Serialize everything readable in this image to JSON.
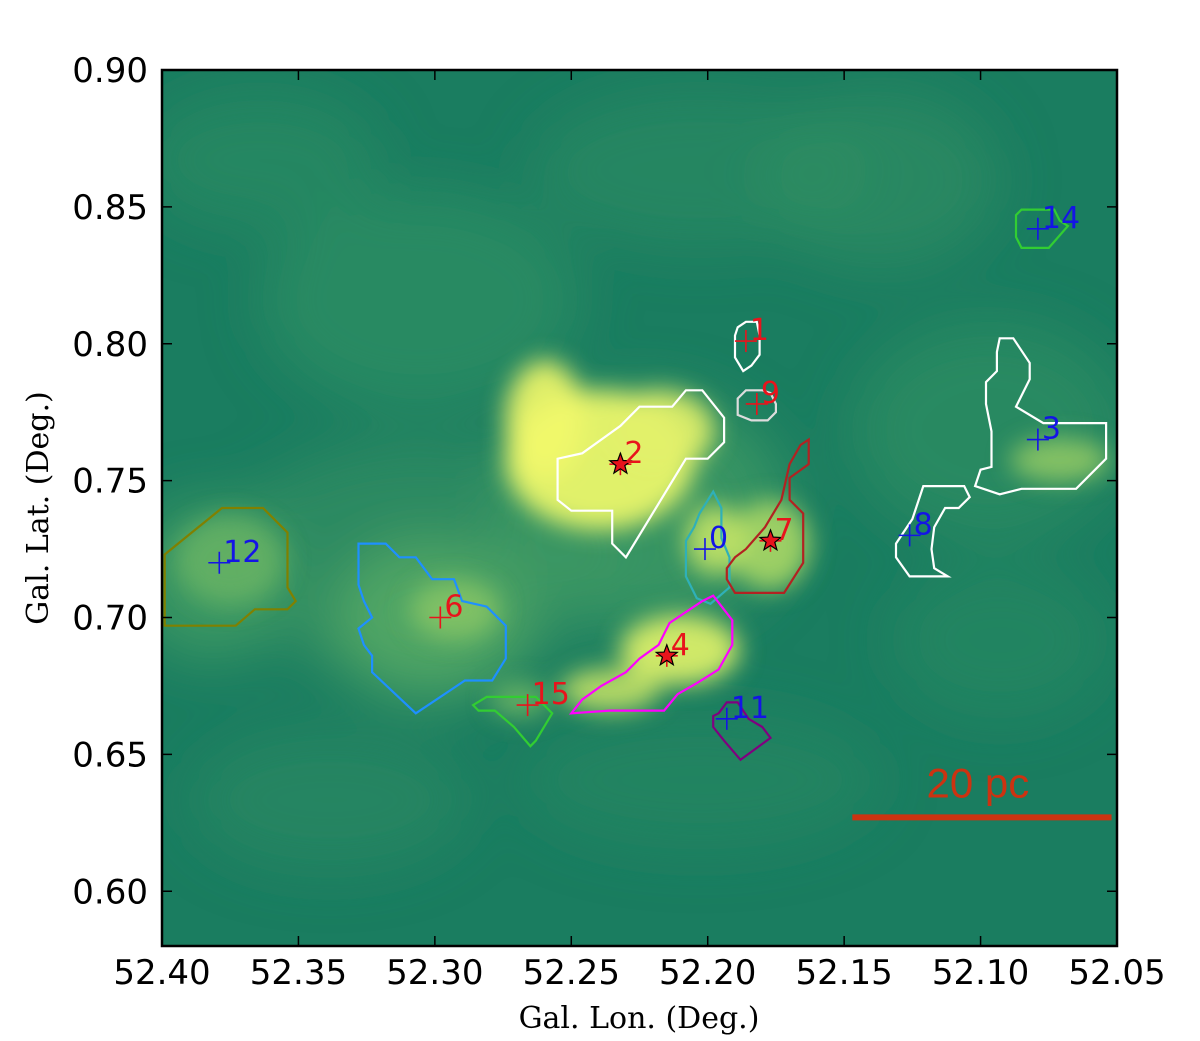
{
  "chart_data": {
    "type": "scatter",
    "subtype": "sky map with clump contours over a colour-scale intensity image",
    "title": "",
    "xlabel": "Gal. Lon. (Deg.)",
    "ylabel": "Gal. Lat. (Deg.)",
    "xlim": [
      52.4,
      52.05
    ],
    "ylim": [
      0.58,
      0.9
    ],
    "x_reversed": true,
    "xticks": [
      "52.40",
      "52.35",
      "52.30",
      "52.25",
      "52.20",
      "52.15",
      "52.10",
      "52.05"
    ],
    "yticks": [
      "0.60",
      "0.65",
      "0.70",
      "0.75",
      "0.80",
      "0.85",
      "0.90"
    ],
    "grid": false,
    "colormap": "summer",
    "colors": {
      "map_low": "#006a5a",
      "map_mid": "#3c9a63",
      "map_high": "#ffff66",
      "label_red": "#e8141c",
      "label_blue": "#1414e6",
      "star": "#e8141c",
      "scalebar": "#cc3311"
    },
    "clumps": [
      {
        "id": "0",
        "lon": 52.201,
        "lat": 0.725,
        "label_color": "blue",
        "contour_color": "#2fb0b8",
        "star": false,
        "contour": [
          [
            52.203,
            0.738
          ],
          [
            52.198,
            0.746
          ],
          [
            52.195,
            0.74
          ],
          [
            52.195,
            0.729
          ],
          [
            52.192,
            0.722
          ],
          [
            52.192,
            0.711
          ],
          [
            52.199,
            0.705
          ],
          [
            52.204,
            0.707
          ],
          [
            52.208,
            0.715
          ],
          [
            52.208,
            0.728
          ],
          [
            52.205,
            0.733
          ]
        ]
      },
      {
        "id": "1",
        "lon": 52.186,
        "lat": 0.801,
        "label_color": "red",
        "contour_color": "#ffffff",
        "star": false,
        "contour": [
          [
            52.189,
            0.806
          ],
          [
            52.186,
            0.808
          ],
          [
            52.182,
            0.808
          ],
          [
            52.181,
            0.803
          ],
          [
            52.181,
            0.796
          ],
          [
            52.184,
            0.792
          ],
          [
            52.187,
            0.79
          ],
          [
            52.19,
            0.795
          ],
          [
            52.19,
            0.803
          ]
        ]
      },
      {
        "id": "2",
        "lon": 52.232,
        "lat": 0.756,
        "label_color": "red",
        "contour_color": "#ffffff",
        "star": true,
        "contour": [
          [
            52.246,
            0.76
          ],
          [
            52.232,
            0.77
          ],
          [
            52.225,
            0.777
          ],
          [
            52.213,
            0.777
          ],
          [
            52.208,
            0.783
          ],
          [
            52.202,
            0.783
          ],
          [
            52.194,
            0.773
          ],
          [
            52.194,
            0.764
          ],
          [
            52.2,
            0.758
          ],
          [
            52.208,
            0.758
          ],
          [
            52.23,
            0.722
          ],
          [
            52.235,
            0.727
          ],
          [
            52.235,
            0.739
          ],
          [
            52.25,
            0.739
          ],
          [
            52.255,
            0.743
          ],
          [
            52.255,
            0.758
          ]
        ]
      },
      {
        "id": "3",
        "lon": 52.079,
        "lat": 0.765,
        "label_color": "blue",
        "contour_color": "#ffffff",
        "star": false,
        "contour": [
          [
            52.093,
            0.802
          ],
          [
            52.088,
            0.802
          ],
          [
            52.082,
            0.793
          ],
          [
            52.082,
            0.787
          ],
          [
            52.087,
            0.777
          ],
          [
            52.077,
            0.771
          ],
          [
            52.054,
            0.771
          ],
          [
            52.054,
            0.758
          ],
          [
            52.065,
            0.747
          ],
          [
            52.085,
            0.747
          ],
          [
            52.093,
            0.745
          ],
          [
            52.102,
            0.748
          ],
          [
            52.1,
            0.754
          ],
          [
            52.096,
            0.755
          ],
          [
            52.096,
            0.768
          ],
          [
            52.098,
            0.778
          ],
          [
            52.098,
            0.786
          ],
          [
            52.094,
            0.79
          ],
          [
            52.094,
            0.797
          ]
        ]
      },
      {
        "id": "4",
        "lon": 52.215,
        "lat": 0.686,
        "label_color": "red",
        "contour_color": "#ff00ff",
        "star": true,
        "contour": [
          [
            52.25,
            0.665
          ],
          [
            52.246,
            0.67
          ],
          [
            52.239,
            0.675
          ],
          [
            52.23,
            0.68
          ],
          [
            52.225,
            0.685
          ],
          [
            52.218,
            0.69
          ],
          [
            52.214,
            0.698
          ],
          [
            52.202,
            0.706
          ],
          [
            52.198,
            0.708
          ],
          [
            52.191,
            0.699
          ],
          [
            52.191,
            0.69
          ],
          [
            52.196,
            0.681
          ],
          [
            52.204,
            0.676
          ],
          [
            52.211,
            0.672
          ],
          [
            52.216,
            0.666
          ],
          [
            52.236,
            0.666
          ]
        ]
      },
      {
        "id": "6",
        "lon": 52.298,
        "lat": 0.7,
        "label_color": "red",
        "contour_color": "#1e90ff",
        "star": false,
        "contour": [
          [
            52.328,
            0.727
          ],
          [
            52.318,
            0.727
          ],
          [
            52.313,
            0.722
          ],
          [
            52.307,
            0.722
          ],
          [
            52.301,
            0.714
          ],
          [
            52.293,
            0.714
          ],
          [
            52.29,
            0.706
          ],
          [
            52.281,
            0.704
          ],
          [
            52.274,
            0.697
          ],
          [
            52.274,
            0.685
          ],
          [
            52.279,
            0.677
          ],
          [
            52.289,
            0.677
          ],
          [
            52.307,
            0.665
          ],
          [
            52.323,
            0.68
          ],
          [
            52.323,
            0.686
          ],
          [
            52.326,
            0.69
          ],
          [
            52.328,
            0.696
          ],
          [
            52.323,
            0.7
          ],
          [
            52.326,
            0.706
          ],
          [
            52.328,
            0.712
          ]
        ]
      },
      {
        "id": "7",
        "lon": 52.177,
        "lat": 0.728,
        "label_color": "red",
        "contour_color": "#b22222",
        "star": true,
        "contour": [
          [
            52.173,
            0.743
          ],
          [
            52.17,
            0.756
          ],
          [
            52.166,
            0.763
          ],
          [
            52.163,
            0.765
          ],
          [
            52.163,
            0.756
          ],
          [
            52.17,
            0.751
          ],
          [
            52.17,
            0.743
          ],
          [
            52.165,
            0.738
          ],
          [
            52.165,
            0.727
          ],
          [
            52.165,
            0.72
          ],
          [
            52.172,
            0.709
          ],
          [
            52.179,
            0.709
          ],
          [
            52.19,
            0.709
          ],
          [
            52.193,
            0.714
          ],
          [
            52.193,
            0.718
          ],
          [
            52.19,
            0.722
          ],
          [
            52.186,
            0.725
          ],
          [
            52.179,
            0.733
          ]
        ]
      },
      {
        "id": "8",
        "lon": 52.126,
        "lat": 0.73,
        "label_color": "blue",
        "contour_color": "#ffffff",
        "star": false,
        "contour": [
          [
            52.121,
            0.748
          ],
          [
            52.106,
            0.748
          ],
          [
            52.104,
            0.744
          ],
          [
            52.108,
            0.74
          ],
          [
            52.113,
            0.74
          ],
          [
            52.117,
            0.733
          ],
          [
            52.118,
            0.725
          ],
          [
            52.117,
            0.718
          ],
          [
            52.112,
            0.715
          ],
          [
            52.126,
            0.715
          ],
          [
            52.131,
            0.722
          ],
          [
            52.131,
            0.727
          ],
          [
            52.125,
            0.736
          ]
        ]
      },
      {
        "id": "9",
        "lon": 52.182,
        "lat": 0.778,
        "label_color": "red",
        "contour_color": "#dddddd",
        "star": false,
        "contour": [
          [
            52.189,
            0.78
          ],
          [
            52.186,
            0.783
          ],
          [
            52.18,
            0.783
          ],
          [
            52.177,
            0.782
          ],
          [
            52.175,
            0.778
          ],
          [
            52.175,
            0.775
          ],
          [
            52.178,
            0.772
          ],
          [
            52.184,
            0.772
          ],
          [
            52.189,
            0.774
          ]
        ]
      },
      {
        "id": "11",
        "lon": 52.193,
        "lat": 0.663,
        "label_color": "blue",
        "contour_color": "#800080",
        "star": false,
        "contour": [
          [
            52.196,
            0.665
          ],
          [
            52.193,
            0.669
          ],
          [
            52.189,
            0.669
          ],
          [
            52.185,
            0.663
          ],
          [
            52.18,
            0.66
          ],
          [
            52.177,
            0.656
          ],
          [
            52.188,
            0.648
          ],
          [
            52.194,
            0.655
          ],
          [
            52.198,
            0.66
          ],
          [
            52.198,
            0.664
          ]
        ]
      },
      {
        "id": "12",
        "lon": 52.379,
        "lat": 0.72,
        "label_color": "blue",
        "contour_color": "#808000",
        "star": false,
        "contour": [
          [
            52.399,
            0.723
          ],
          [
            52.378,
            0.74
          ],
          [
            52.363,
            0.74
          ],
          [
            52.354,
            0.731
          ],
          [
            52.354,
            0.711
          ],
          [
            52.351,
            0.706
          ],
          [
            52.354,
            0.703
          ],
          [
            52.366,
            0.703
          ],
          [
            52.373,
            0.697
          ],
          [
            52.386,
            0.697
          ],
          [
            52.399,
            0.697
          ]
        ]
      },
      {
        "id": "14",
        "lon": 52.079,
        "lat": 0.842,
        "label_color": "blue",
        "contour_color": "#32cd32",
        "star": false,
        "contour": [
          [
            52.085,
            0.849
          ],
          [
            52.073,
            0.849
          ],
          [
            52.071,
            0.845
          ],
          [
            52.068,
            0.843
          ],
          [
            52.075,
            0.835
          ],
          [
            52.085,
            0.835
          ],
          [
            52.087,
            0.839
          ],
          [
            52.087,
            0.847
          ]
        ]
      },
      {
        "id": "15",
        "lon": 52.266,
        "lat": 0.668,
        "label_color": "red",
        "contour_color": "#32cd32",
        "star": false,
        "contour": [
          [
            52.281,
            0.671
          ],
          [
            52.263,
            0.671
          ],
          [
            52.257,
            0.665
          ],
          [
            52.263,
            0.655
          ],
          [
            52.265,
            0.653
          ],
          [
            52.271,
            0.66
          ],
          [
            52.278,
            0.666
          ],
          [
            52.284,
            0.666
          ],
          [
            52.286,
            0.668
          ]
        ]
      }
    ],
    "scale_bar": {
      "label": "20 pc",
      "lon_start": 52.147,
      "lon_end": 52.052,
      "lat": 0.627
    }
  }
}
